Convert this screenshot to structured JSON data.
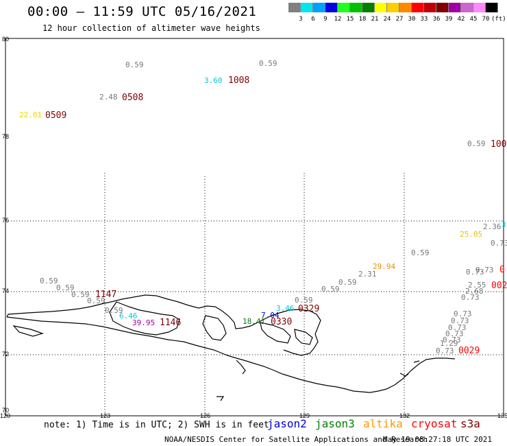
{
  "header": {
    "title": "00:00 – 11:59 UTC 05/16/2021",
    "subtitle": "12 hour collection of altimeter wave heights"
  },
  "colorbar": {
    "colors": [
      "#808080",
      "#00e5ee",
      "#00a0ff",
      "#0000e0",
      "#20ff20",
      "#00c000",
      "#008000",
      "#ffff00",
      "#ffcc00",
      "#ff8800",
      "#ff0000",
      "#c00000",
      "#800000",
      "#a000a0",
      "#cc66cc",
      "#ff88ff",
      "#000000"
    ],
    "labels": [
      "3",
      "6",
      "9",
      "12",
      "15",
      "18",
      "21",
      "24",
      "27",
      "30",
      "33",
      "36",
      "39",
      "42",
      "45",
      "70"
    ],
    "unit": "(ft)"
  },
  "axes": {
    "y_labels": [
      "80",
      "78",
      "76",
      "74",
      "72",
      "70"
    ],
    "x_labels": [
      "120",
      "123",
      "126",
      "129",
      "132",
      "135"
    ]
  },
  "observations": [
    {
      "text": "0.59",
      "color": "#777777"
    },
    {
      "text": "0.59",
      "color": "#777777"
    },
    {
      "text": "3.60",
      "color": "#00c8d8"
    },
    {
      "text": "1008",
      "color": "#800000"
    },
    {
      "text": "2.48",
      "color": "#777777"
    },
    {
      "text": "0508",
      "color": "#800000"
    },
    {
      "text": "22.01",
      "color": "#e8d800"
    },
    {
      "text": "0509",
      "color": "#800000"
    },
    {
      "text": "0.59",
      "color": "#777777"
    },
    {
      "text": "100",
      "color": "#800000"
    },
    {
      "text": "2.36",
      "color": "#777777"
    },
    {
      "text": "3",
      "color": "#00c8d8"
    },
    {
      "text": "25.05",
      "color": "#e8c000"
    },
    {
      "text": "0.73",
      "color": "#777777"
    },
    {
      "text": "0.59",
      "color": "#777777"
    },
    {
      "text": "29.94",
      "color": "#e89000"
    },
    {
      "text": "2.31",
      "color": "#777777"
    },
    {
      "text": "0.73",
      "color": "#777777"
    },
    {
      "text": "0.73",
      "color": "#777777"
    },
    {
      "text": "0",
      "color": "#ff0000"
    },
    {
      "text": "0.59",
      "color": "#777777"
    },
    {
      "text": "0.59",
      "color": "#777777"
    },
    {
      "text": "2.55",
      "color": "#777777"
    },
    {
      "text": "002",
      "color": "#ff0000"
    },
    {
      "text": "2.68",
      "color": "#777777"
    },
    {
      "text": "0.73",
      "color": "#777777"
    },
    {
      "text": "0.59",
      "color": "#777777"
    },
    {
      "text": "0.59",
      "color": "#777777"
    },
    {
      "text": "0.59",
      "color": "#777777"
    },
    {
      "text": "1147",
      "color": "#800000"
    },
    {
      "text": "0.59",
      "color": "#777777"
    },
    {
      "text": "0.59",
      "color": "#777777"
    },
    {
      "text": "0329",
      "color": "#800000"
    },
    {
      "text": "3.46",
      "color": "#00c8d8"
    },
    {
      "text": "7.04",
      "color": "#0000e0"
    },
    {
      "text": "0.59",
      "color": "#777777"
    },
    {
      "text": "6.46",
      "color": "#00c8d8"
    },
    {
      "text": "39.95",
      "color": "#a000a0"
    },
    {
      "text": "1146",
      "color": "#800000"
    },
    {
      "text": "18.41",
      "color": "#008000"
    },
    {
      "text": "0330",
      "color": "#800000"
    },
    {
      "text": "0.73",
      "color": "#777777"
    },
    {
      "text": "0.73",
      "color": "#777777"
    },
    {
      "text": "0.73",
      "color": "#777777"
    },
    {
      "text": "0.73",
      "color": "#777777"
    },
    {
      "text": "0.73",
      "color": "#777777"
    },
    {
      "text": "1.29",
      "color": "#777777"
    },
    {
      "text": "0.73",
      "color": "#777777"
    },
    {
      "text": "0029",
      "color": "#ff0000"
    }
  ],
  "legend": {
    "note": "note: 1) Time is in UTC; 2) SWH is in feet",
    "jason2": "jason2",
    "jason3": "jason3",
    "altika": "altika",
    "cryosat": "cryosat",
    "s3a": "s3a"
  },
  "footer": {
    "credit": "NOAA/NESDIS Center for Satellite Applications and Research",
    "timestamp": "May 19 08:27:18 UTC 2021"
  }
}
